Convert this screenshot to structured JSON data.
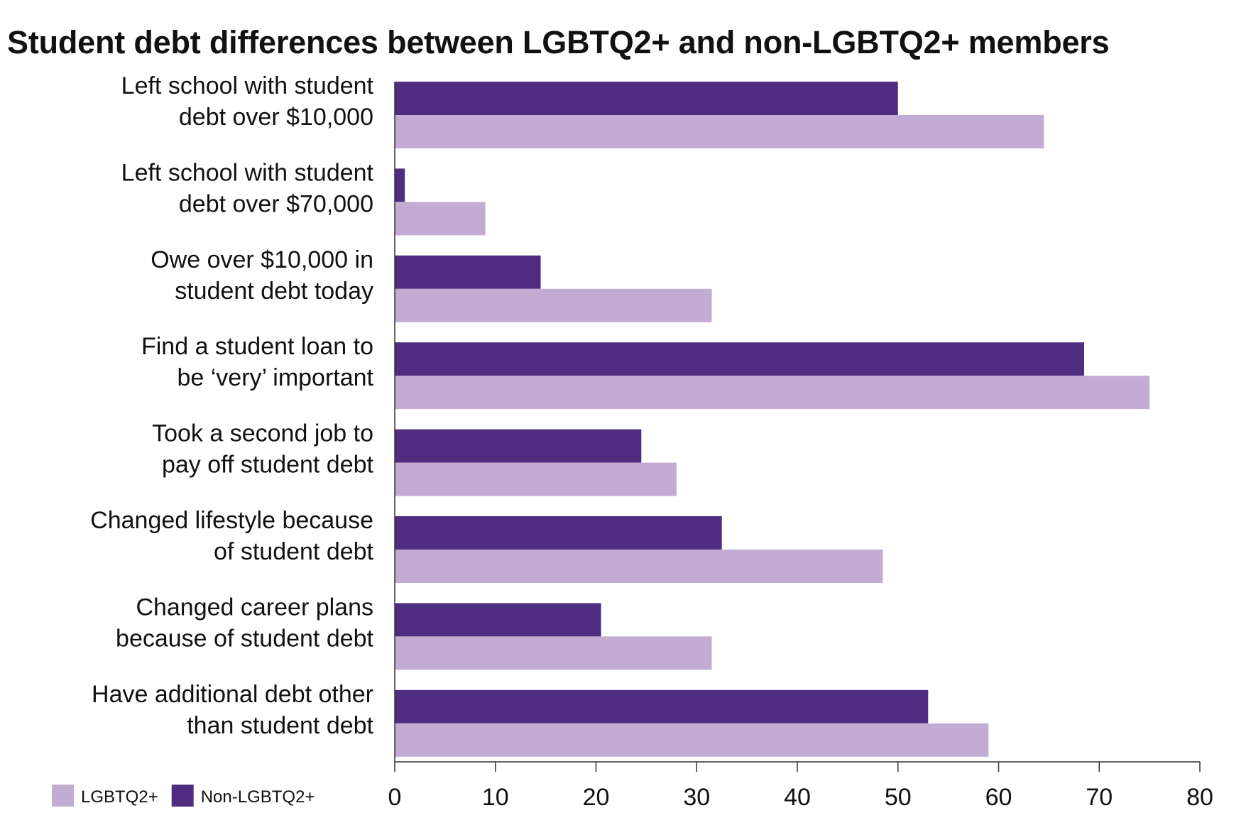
{
  "chart_data": {
    "type": "bar",
    "orientation": "horizontal",
    "title": "Student debt differences between LGBTQ2+ and non-LGBTQ2+ members",
    "categories": [
      [
        "Left school with student",
        "debt over $10,000"
      ],
      [
        "Left school with student",
        "debt over $70,000"
      ],
      [
        "Owe over $10,000 in",
        "student debt today"
      ],
      [
        "Find a student loan to",
        "be ‘very’ important"
      ],
      [
        "Took a second job to",
        "pay off student debt"
      ],
      [
        "Changed lifestyle because",
        "of student debt"
      ],
      [
        "Changed career plans",
        "because of student debt"
      ],
      [
        "Have additional debt other",
        "than student debt"
      ]
    ],
    "series": [
      {
        "name": "Non-LGBTQ2+",
        "color": "#4f2d80",
        "values": [
          50,
          1,
          14.5,
          68.5,
          24.5,
          32.5,
          20.5,
          53
        ]
      },
      {
        "name": "LGBTQ2+",
        "color": "#c3acd3",
        "values": [
          64.5,
          9,
          31.5,
          75,
          28,
          48.5,
          31.5,
          59
        ]
      }
    ],
    "xlim": [
      0,
      80
    ],
    "xticks": [
      "0",
      "10",
      "20",
      "30",
      "40",
      "50",
      "60",
      "70",
      "80"
    ],
    "grid": false,
    "legend": {
      "position": "bottom-left",
      "items": [
        {
          "label": "LGBTQ2+",
          "color": "#c3acd3"
        },
        {
          "label": "Non-LGBTQ2+",
          "color": "#4f2d80"
        }
      ]
    }
  }
}
